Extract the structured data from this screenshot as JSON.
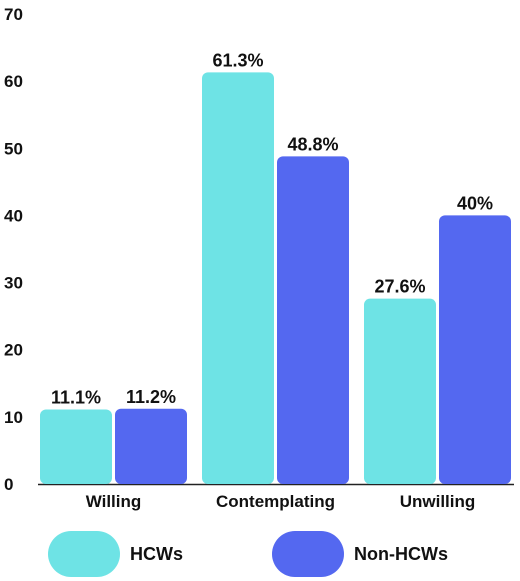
{
  "chart_data": {
    "type": "bar",
    "categories": [
      "Willing",
      "Contemplating",
      "Unwilling"
    ],
    "series": [
      {
        "name": "HCWs",
        "values": [
          11.1,
          61.3,
          27.6
        ],
        "labels": [
          "11.1%",
          "61.3%",
          "27.6%"
        ],
        "color": "#6ee3e5"
      },
      {
        "name": "Non-HCWs",
        "values": [
          11.2,
          48.8,
          40
        ],
        "labels": [
          "11.2%",
          "48.8%",
          "40%"
        ],
        "color": "#5468f0"
      }
    ],
    "ylim": [
      0,
      70
    ],
    "yticks": [
      "0",
      "10",
      "20",
      "30",
      "40",
      "50",
      "60",
      "70"
    ],
    "grid": false,
    "legend_position": "bottom"
  }
}
